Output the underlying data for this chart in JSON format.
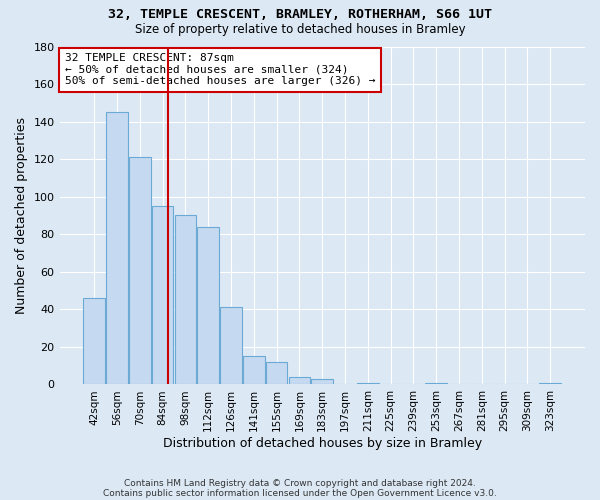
{
  "title": "32, TEMPLE CRESCENT, BRAMLEY, ROTHERHAM, S66 1UT",
  "subtitle": "Size of property relative to detached houses in Bramley",
  "xlabel": "Distribution of detached houses by size in Bramley",
  "ylabel": "Number of detached properties",
  "categories": [
    "42sqm",
    "56sqm",
    "70sqm",
    "84sqm",
    "98sqm",
    "112sqm",
    "126sqm",
    "141sqm",
    "155sqm",
    "169sqm",
    "183sqm",
    "197sqm",
    "211sqm",
    "225sqm",
    "239sqm",
    "253sqm",
    "267sqm",
    "281sqm",
    "295sqm",
    "309sqm",
    "323sqm"
  ],
  "values": [
    46,
    145,
    121,
    95,
    90,
    84,
    41,
    15,
    12,
    4,
    3,
    0,
    1,
    0,
    0,
    1,
    0,
    0,
    0,
    0,
    1
  ],
  "bar_color": "#c5d9f0",
  "bar_edge_color": "#6aaad4",
  "annotation_box_text": "32 TEMPLE CRESCENT: 87sqm\n← 50% of detached houses are smaller (324)\n50% of semi-detached houses are larger (326) →",
  "annotation_box_color": "#ffffff",
  "annotation_box_edge_color": "#cc0000",
  "vline_color": "#cc0000",
  "ylim": [
    0,
    180
  ],
  "yticks": [
    0,
    20,
    40,
    60,
    80,
    100,
    120,
    140,
    160,
    180
  ],
  "background_color": "#dce9f5",
  "plot_bg_color": "#dce9f5",
  "grid_color": "#ffffff",
  "footer_line1": "Contains HM Land Registry data © Crown copyright and database right 2024.",
  "footer_line2": "Contains public sector information licensed under the Open Government Licence v3.0."
}
